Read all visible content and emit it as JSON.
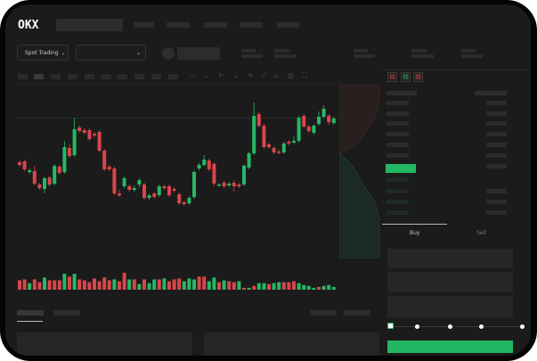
{
  "brand": {
    "logo_text": "OKX"
  },
  "toolbar": {
    "market_selector_label": "Spot Trading",
    "chevron": "chevron-down-icon"
  },
  "order_form": {
    "tabs": [
      "Buy",
      "Sell"
    ],
    "active_tab": "Buy",
    "slider_value_percent": 0,
    "slider_stops": 5
  },
  "colors": {
    "up": "#26b865",
    "down": "#d8464b",
    "background": "#1b1b1b",
    "accent_green": "#22b863"
  },
  "chart_data": {
    "type": "candlestick",
    "candles_ohlc": [
      [
        58,
        55,
        60,
        53
      ],
      [
        59,
        50,
        61,
        48
      ],
      [
        47,
        49,
        51,
        45
      ],
      [
        48,
        34,
        54,
        32
      ],
      [
        33,
        29,
        35,
        27
      ],
      [
        28,
        40,
        42,
        23
      ],
      [
        41,
        33,
        43,
        31
      ],
      [
        34,
        54,
        56,
        32
      ],
      [
        53,
        46,
        55,
        44
      ],
      [
        47,
        75,
        82,
        45
      ],
      [
        74,
        65,
        78,
        63
      ],
      [
        66,
        95,
        108,
        64
      ],
      [
        97,
        93,
        99,
        91
      ],
      [
        94,
        91,
        96,
        89
      ],
      [
        94,
        84,
        96,
        82
      ],
      [
        90,
        88,
        92,
        86
      ],
      [
        92,
        71,
        94,
        69
      ],
      [
        71,
        50,
        73,
        48
      ],
      [
        53,
        50,
        55,
        48
      ],
      [
        51,
        23,
        53,
        21
      ],
      [
        23,
        21,
        27,
        19
      ],
      [
        31,
        40,
        42,
        29
      ],
      [
        31,
        27,
        33,
        25
      ],
      [
        27,
        29,
        32,
        25
      ],
      [
        33,
        38,
        40,
        30
      ],
      [
        33,
        18,
        35,
        16
      ],
      [
        18,
        21,
        23,
        16
      ],
      [
        23,
        19,
        25,
        17
      ],
      [
        21,
        31,
        33,
        19
      ],
      [
        31,
        29,
        33,
        27
      ],
      [
        31,
        21,
        33,
        19
      ],
      [
        28,
        26,
        30,
        24
      ],
      [
        22,
        12,
        24,
        10
      ],
      [
        13,
        11,
        15,
        9
      ],
      [
        12,
        18,
        20,
        10
      ],
      [
        19,
        47,
        49,
        17
      ],
      [
        51,
        55,
        57,
        49
      ],
      [
        55,
        61,
        66,
        53
      ],
      [
        60,
        50,
        62,
        48
      ],
      [
        56,
        34,
        58,
        31
      ],
      [
        33,
        33,
        35,
        31
      ],
      [
        35,
        31,
        37,
        29
      ],
      [
        32,
        34,
        36,
        30
      ],
      [
        35,
        31,
        38,
        25
      ],
      [
        33,
        31,
        35,
        29
      ],
      [
        33,
        54,
        56,
        31
      ],
      [
        52,
        68,
        70,
        50
      ],
      [
        68,
        110,
        125,
        66
      ],
      [
        112,
        99,
        114,
        97
      ],
      [
        99,
        75,
        101,
        73
      ],
      [
        78,
        75,
        80,
        73
      ],
      [
        74,
        69,
        76,
        67
      ],
      [
        70,
        69,
        72,
        67
      ],
      [
        69,
        79,
        81,
        67
      ],
      [
        81,
        79,
        83,
        77
      ],
      [
        80,
        82,
        87,
        78
      ],
      [
        82,
        108,
        110,
        80
      ],
      [
        110,
        98,
        112,
        96
      ],
      [
        98,
        93,
        100,
        91
      ],
      [
        91,
        99,
        101,
        89
      ],
      [
        101,
        109,
        115,
        99
      ],
      [
        109,
        118,
        122,
        107
      ],
      [
        110,
        103,
        112,
        100
      ],
      [
        102,
        107,
        109,
        100
      ]
    ],
    "volume": [
      10,
      11,
      7,
      11,
      8,
      13,
      10,
      10,
      10,
      17,
      14,
      17,
      11,
      10,
      8,
      12,
      9,
      13,
      10,
      11,
      9,
      18,
      11,
      11,
      6,
      11,
      7,
      11,
      11,
      12,
      9,
      11,
      12,
      9,
      12,
      11,
      14,
      14,
      9,
      13,
      8,
      10,
      9,
      8,
      9,
      2,
      2,
      4,
      7,
      7,
      6,
      7,
      8,
      8,
      8,
      9,
      7,
      5,
      4,
      2,
      3,
      4,
      5,
      3
    ],
    "volume_direction": [
      "d",
      "d",
      "u",
      "d",
      "d",
      "u",
      "d",
      "d",
      "d",
      "u",
      "d",
      "u",
      "d",
      "d",
      "d",
      "d",
      "d",
      "d",
      "d",
      "u",
      "d",
      "d",
      "u",
      "d",
      "u",
      "d",
      "u",
      "u",
      "d",
      "u",
      "d",
      "d",
      "d",
      "u",
      "u",
      "u",
      "d",
      "d",
      "u",
      "u",
      "d",
      "u",
      "d",
      "d",
      "u",
      "d",
      "u",
      "d",
      "u",
      "u",
      "d",
      "u",
      "u",
      "d",
      "d",
      "d",
      "u",
      "u",
      "u",
      "u",
      "d",
      "u",
      "u",
      "u"
    ]
  }
}
